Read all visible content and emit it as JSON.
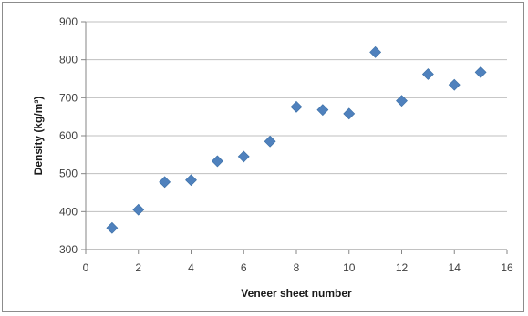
{
  "chart_data": {
    "type": "scatter",
    "title": "",
    "xlabel": "Veneer sheet number",
    "ylabel": "Density (kg/m³)",
    "xlim": [
      0,
      16
    ],
    "ylim": [
      300,
      900
    ],
    "xticks": [
      0,
      2,
      4,
      6,
      8,
      10,
      12,
      14,
      16
    ],
    "yticks": [
      300,
      400,
      500,
      600,
      700,
      800,
      900
    ],
    "grid": "horizontal",
    "legend": "none",
    "marker": "diamond",
    "series": [
      {
        "color": "#4f81bd",
        "x": [
          1,
          2,
          3,
          4,
          5,
          6,
          7,
          8,
          9,
          10,
          11,
          12,
          13,
          14,
          15
        ],
        "y": [
          357,
          405,
          478,
          483,
          533,
          545,
          585,
          676,
          668,
          658,
          820,
          692,
          762,
          734,
          767
        ]
      }
    ]
  }
}
